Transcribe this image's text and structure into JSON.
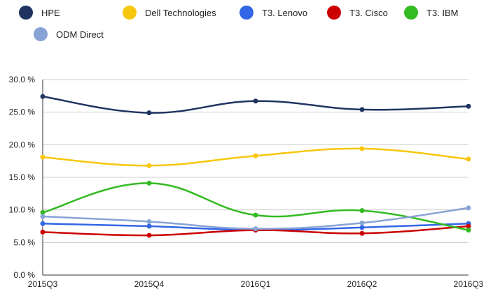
{
  "chart_data": {
    "type": "line",
    "title": "",
    "xlabel": "",
    "ylabel": "",
    "categories": [
      "2015Q3",
      "2015Q4",
      "2016Q1",
      "2016Q2",
      "2016Q3"
    ],
    "ylim": [
      0,
      30
    ],
    "yticks": [
      0,
      5,
      10,
      15,
      20,
      25,
      30
    ],
    "ytick_labels": [
      "0.0 %",
      "5.0 %",
      "10.0 %",
      "15.0 %",
      "20.0 %",
      "25.0 %",
      "30.0 %"
    ],
    "grid": true,
    "legend_position": "top",
    "smooth": true,
    "series": [
      {
        "name": "HPE",
        "color": "#1f3461",
        "values": [
          27.4,
          24.9,
          26.7,
          25.4,
          25.9
        ]
      },
      {
        "name": "Dell Technologies",
        "color": "#f7c70d",
        "values": [
          18.1,
          16.8,
          18.3,
          19.4,
          17.8
        ]
      },
      {
        "name": "T3. Lenovo",
        "color": "#3366e6",
        "values": [
          7.9,
          7.5,
          6.9,
          7.3,
          7.9
        ]
      },
      {
        "name": "T3. Cisco",
        "color": "#cc0000",
        "values": [
          6.6,
          6.1,
          6.9,
          6.4,
          7.5
        ]
      },
      {
        "name": "T3. IBM",
        "color": "#33bb22",
        "values": [
          9.6,
          14.1,
          9.2,
          9.9,
          6.9
        ]
      },
      {
        "name": "ODM Direct",
        "color": "#88a3d6",
        "values": [
          9.0,
          8.2,
          7.1,
          8.0,
          10.3
        ]
      }
    ]
  }
}
